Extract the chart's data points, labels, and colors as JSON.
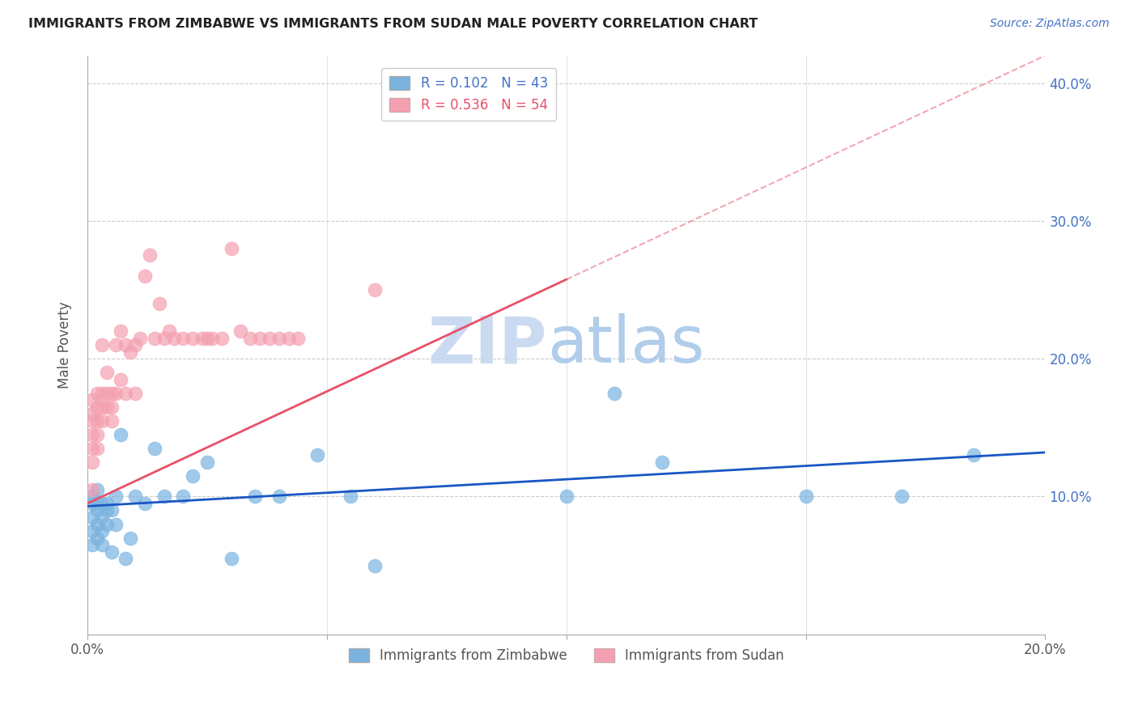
{
  "title": "IMMIGRANTS FROM ZIMBABWE VS IMMIGRANTS FROM SUDAN MALE POVERTY CORRELATION CHART",
  "source": "Source: ZipAtlas.com",
  "ylabel": "Male Poverty",
  "xlim": [
    0.0,
    0.2
  ],
  "ylim": [
    0.0,
    0.42
  ],
  "zimbabwe_color": "#7ab3e0",
  "sudan_color": "#f4a0b0",
  "zimbabwe_line_color": "#1a56c4",
  "sudan_line_color": "#e8506a",
  "watermark_zip": "ZIP",
  "watermark_atlas": "atlas",
  "watermark_color_zip": "#c8dff5",
  "watermark_color_atlas": "#a0c8f0",
  "legend_label_zimbabwe": "R = 0.102   N = 43",
  "legend_label_sudan": "R = 0.536   N = 54",
  "legend_label_bottom_zimbabwe": "Immigrants from Zimbabwe",
  "legend_label_bottom_sudan": "Immigrants from Sudan",
  "zimbabwe_x": [
    0.001,
    0.001,
    0.001,
    0.001,
    0.001,
    0.002,
    0.002,
    0.002,
    0.002,
    0.002,
    0.003,
    0.003,
    0.003,
    0.003,
    0.004,
    0.004,
    0.004,
    0.005,
    0.005,
    0.006,
    0.006,
    0.007,
    0.008,
    0.009,
    0.01,
    0.012,
    0.014,
    0.016,
    0.02,
    0.022,
    0.025,
    0.03,
    0.035,
    0.04,
    0.048,
    0.055,
    0.06,
    0.1,
    0.11,
    0.12,
    0.15,
    0.17,
    0.185
  ],
  "zimbabwe_y": [
    0.095,
    0.1,
    0.085,
    0.075,
    0.065,
    0.105,
    0.095,
    0.09,
    0.08,
    0.07,
    0.095,
    0.085,
    0.075,
    0.065,
    0.095,
    0.09,
    0.08,
    0.09,
    0.06,
    0.1,
    0.08,
    0.145,
    0.055,
    0.07,
    0.1,
    0.095,
    0.135,
    0.1,
    0.1,
    0.115,
    0.125,
    0.055,
    0.1,
    0.1,
    0.13,
    0.1,
    0.05,
    0.1,
    0.175,
    0.125,
    0.1,
    0.1,
    0.13
  ],
  "sudan_x": [
    0.001,
    0.001,
    0.001,
    0.001,
    0.001,
    0.001,
    0.001,
    0.002,
    0.002,
    0.002,
    0.002,
    0.002,
    0.003,
    0.003,
    0.003,
    0.003,
    0.004,
    0.004,
    0.004,
    0.005,
    0.005,
    0.005,
    0.006,
    0.006,
    0.007,
    0.007,
    0.008,
    0.008,
    0.009,
    0.01,
    0.01,
    0.011,
    0.012,
    0.013,
    0.014,
    0.015,
    0.016,
    0.017,
    0.018,
    0.02,
    0.022,
    0.024,
    0.025,
    0.026,
    0.028,
    0.03,
    0.032,
    0.034,
    0.036,
    0.038,
    0.04,
    0.042,
    0.044,
    0.06
  ],
  "sudan_y": [
    0.17,
    0.16,
    0.155,
    0.145,
    0.135,
    0.125,
    0.105,
    0.175,
    0.165,
    0.155,
    0.145,
    0.135,
    0.21,
    0.175,
    0.165,
    0.155,
    0.19,
    0.175,
    0.165,
    0.175,
    0.165,
    0.155,
    0.21,
    0.175,
    0.22,
    0.185,
    0.21,
    0.175,
    0.205,
    0.21,
    0.175,
    0.215,
    0.26,
    0.275,
    0.215,
    0.24,
    0.215,
    0.22,
    0.215,
    0.215,
    0.215,
    0.215,
    0.215,
    0.215,
    0.215,
    0.28,
    0.22,
    0.215,
    0.215,
    0.215,
    0.215,
    0.215,
    0.215,
    0.25
  ],
  "zim_line_x0": 0.0,
  "zim_line_y0": 0.093,
  "zim_line_x1": 0.2,
  "zim_line_y1": 0.132,
  "sud_line_x0": 0.0,
  "sud_line_y0": 0.095,
  "sud_line_x1": 0.2,
  "sud_line_y1": 0.42,
  "sud_line_dashed_x0": 0.1,
  "sud_line_dashed_x1": 0.2
}
